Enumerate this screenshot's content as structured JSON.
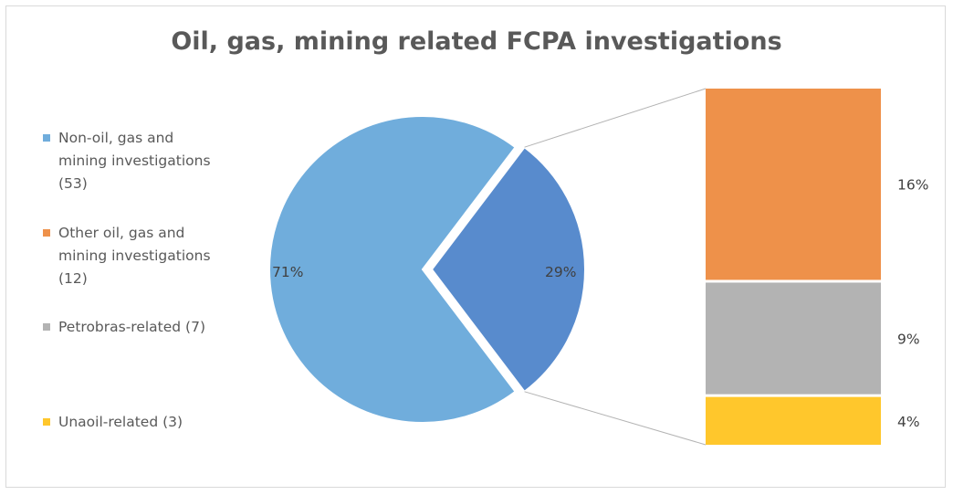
{
  "chart_data": {
    "type": "pie",
    "subtype": "bar-of-pie",
    "title": "Oil, gas, mining related FCPA investigations",
    "legend_position": "left",
    "slices": [
      {
        "name": "Non-oil, gas and mining investigations (53)",
        "value": 53,
        "label": "71%",
        "color": "#70ADDC"
      },
      {
        "name": "Other oil, gas and mining investigations (12)",
        "value": 12,
        "label": "16%",
        "color": "#EE914A"
      },
      {
        "name": "Petrobras-related (7)",
        "value": 7,
        "label": "9%",
        "color": "#B3B3B3"
      },
      {
        "name": "Unaoil-related (3)",
        "value": 3,
        "label": "4%",
        "color": "#FFC72C"
      }
    ],
    "combined_slice": {
      "label": "29%",
      "color": "#588BCD",
      "members": [
        1,
        2,
        3
      ]
    }
  }
}
